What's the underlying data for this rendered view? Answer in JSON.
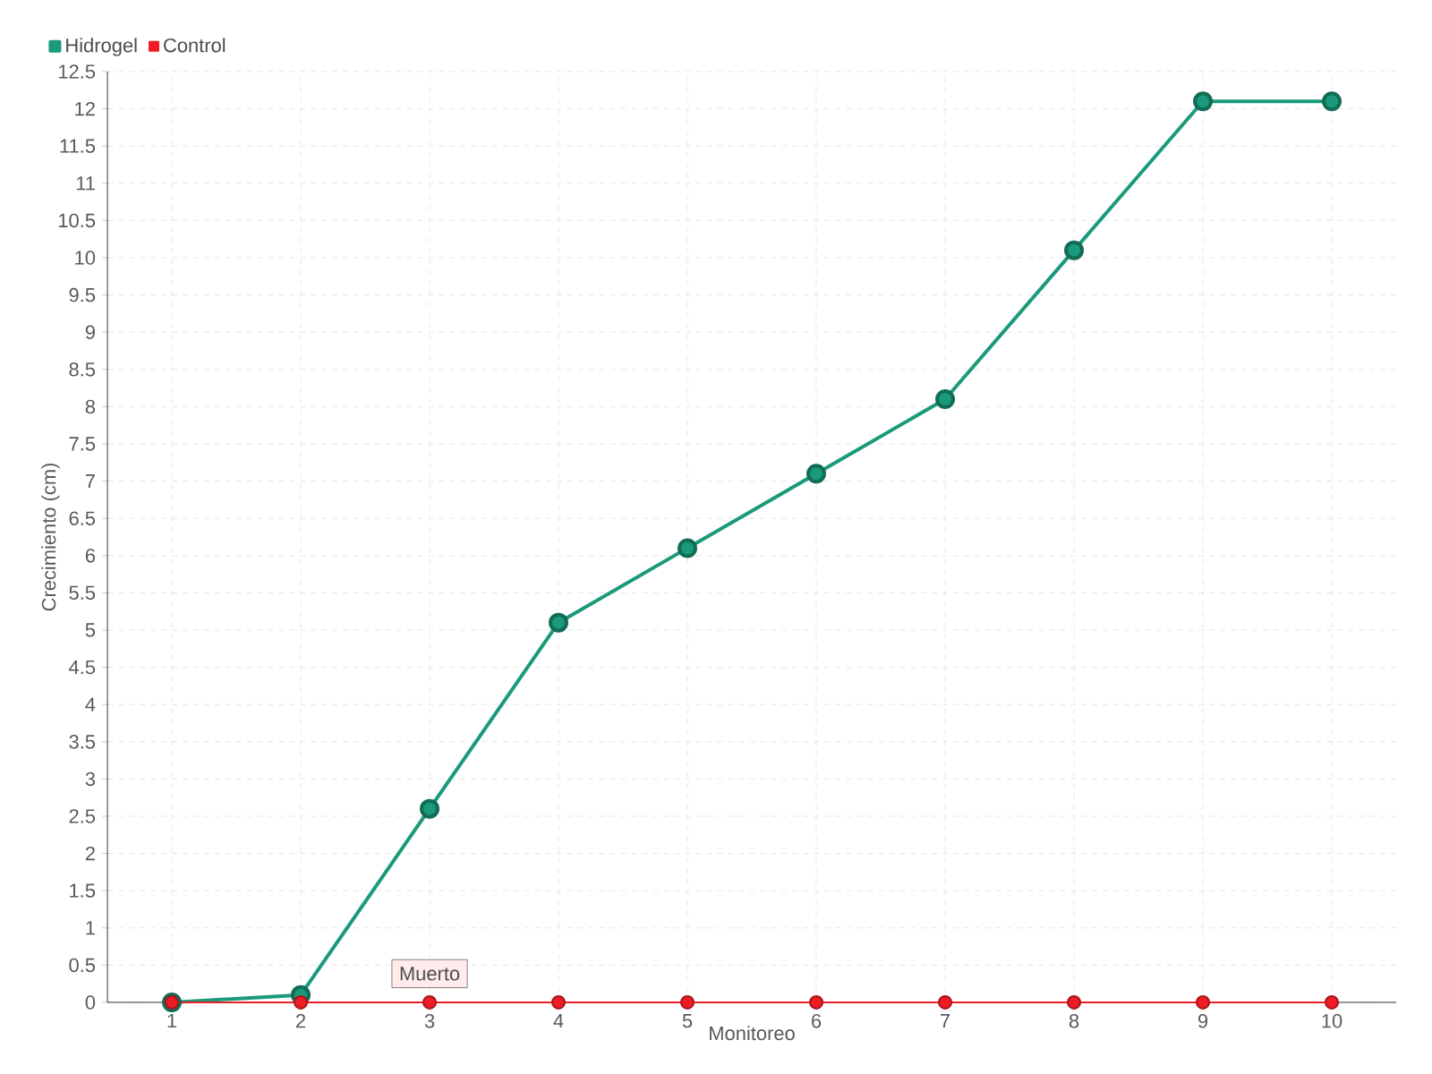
{
  "chart_data": {
    "type": "line",
    "xlabel": "Monitoreo",
    "ylabel": "Crecimiento (cm)",
    "categories": [
      "1",
      "2",
      "3",
      "4",
      "5",
      "6",
      "7",
      "8",
      "9",
      "10"
    ],
    "series": [
      {
        "name": "Hidrogel",
        "color": "#1a9a7a",
        "values": [
          0,
          0.1,
          2.6,
          5.1,
          6.1,
          7.1,
          8.1,
          10.1,
          12.1,
          12.1
        ]
      },
      {
        "name": "Control",
        "color": "#ee1c25",
        "values": [
          0,
          0,
          0,
          0,
          0,
          0,
          0,
          0,
          0,
          0
        ]
      }
    ],
    "ylim": [
      0,
      12.5
    ],
    "yticks": [
      0,
      0.5,
      1,
      1.5,
      2,
      2.5,
      3,
      3.5,
      4,
      4.5,
      5,
      5.5,
      6,
      6.5,
      7,
      7.5,
      8,
      8.5,
      9,
      9.5,
      10,
      10.5,
      11,
      11.5,
      12,
      12.5
    ],
    "annotations": [
      {
        "text": "Muerto",
        "x": "3",
        "y": 0
      }
    ],
    "grid": true,
    "legend": "top left",
    "marker": "circle",
    "line_style": "solid"
  }
}
